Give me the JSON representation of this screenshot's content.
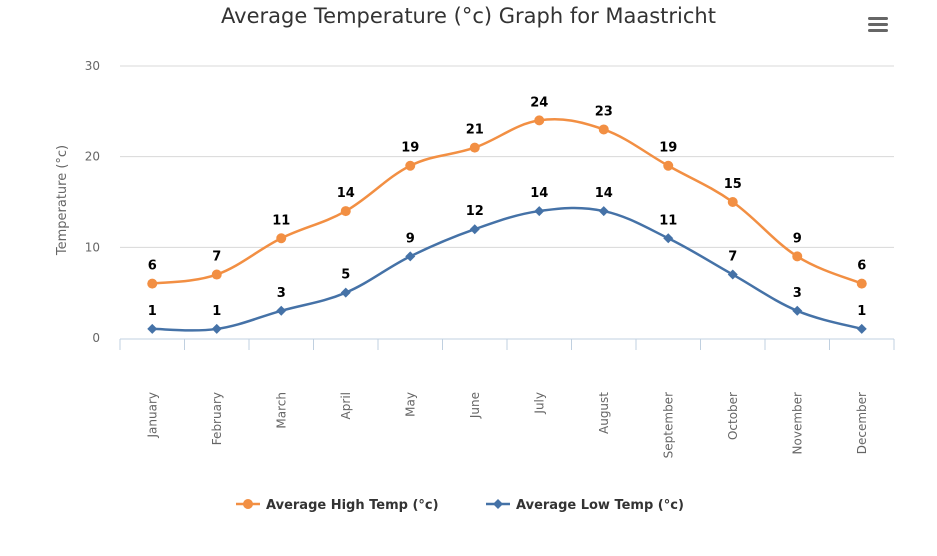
{
  "chart_data": {
    "type": "line",
    "title": "Average Temperature (°c) Graph for Maastricht",
    "xlabel": "",
    "ylabel": "Temperature (°c)",
    "ylim": [
      0,
      30
    ],
    "yticks": [
      0,
      10,
      20,
      30
    ],
    "grid": true,
    "legend_position": "bottom",
    "categories": [
      "January",
      "February",
      "March",
      "April",
      "May",
      "June",
      "July",
      "August",
      "September",
      "October",
      "November",
      "December"
    ],
    "series": [
      {
        "name": "Average High Temp (°c)",
        "color": "#f28f43",
        "marker": "circle",
        "values": [
          6,
          7,
          11,
          14,
          19,
          21,
          24,
          23,
          19,
          15,
          9,
          6
        ]
      },
      {
        "name": "Average Low Temp (°c)",
        "color": "#4572a7",
        "marker": "diamond",
        "values": [
          1,
          1,
          3,
          5,
          9,
          12,
          14,
          14,
          11,
          7,
          3,
          1
        ]
      }
    ]
  },
  "menu": {
    "icon": "hamburger-menu-icon"
  }
}
